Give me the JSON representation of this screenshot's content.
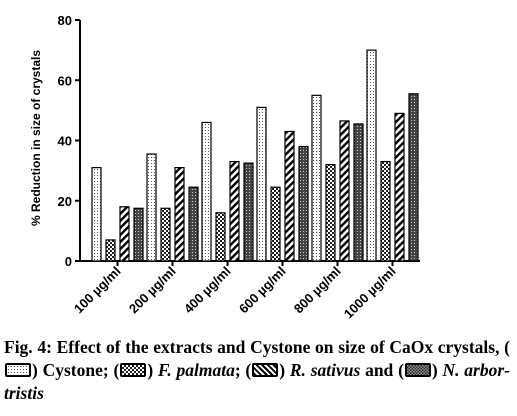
{
  "chart_data": {
    "type": "bar",
    "title": "",
    "xlabel": "",
    "ylabel": "% Reduction in size of crystals",
    "ylim": [
      0,
      80
    ],
    "yticks": [
      0,
      20,
      40,
      60,
      80
    ],
    "grid": false,
    "categories": [
      "100 µg/ml",
      "200 µg/ml",
      "400 µg/ml",
      "600 µg/ml",
      "800 µg/ml",
      "1000 µg/ml"
    ],
    "series": [
      {
        "name": "Cystone",
        "pattern": "dots",
        "values": [
          31,
          35.5,
          46,
          51,
          55,
          70
        ]
      },
      {
        "name": "F. palmata",
        "pattern": "cross-hatch",
        "values": [
          7,
          17.5,
          16,
          24.5,
          32,
          33
        ]
      },
      {
        "name": "R. sativus",
        "pattern": "diagonal",
        "values": [
          18,
          31,
          33,
          43,
          46.5,
          49
        ]
      },
      {
        "name": "N. arbor-tristis",
        "pattern": "dense-grid",
        "values": [
          17.5,
          24.5,
          32.5,
          38,
          45.5,
          55.5
        ]
      }
    ]
  },
  "caption": {
    "prefix": "Fig. 4: Effect of the extracts and Cystone on size of CaOx crystals, (",
    "s1_label": ") Cystone; (",
    "s2_label": "F. palmata",
    "sep2": "; (",
    "s3_label": "R. sativus",
    "and_text": " and",
    "open4": "(",
    "s4_label": "N. arbor-tristis"
  }
}
